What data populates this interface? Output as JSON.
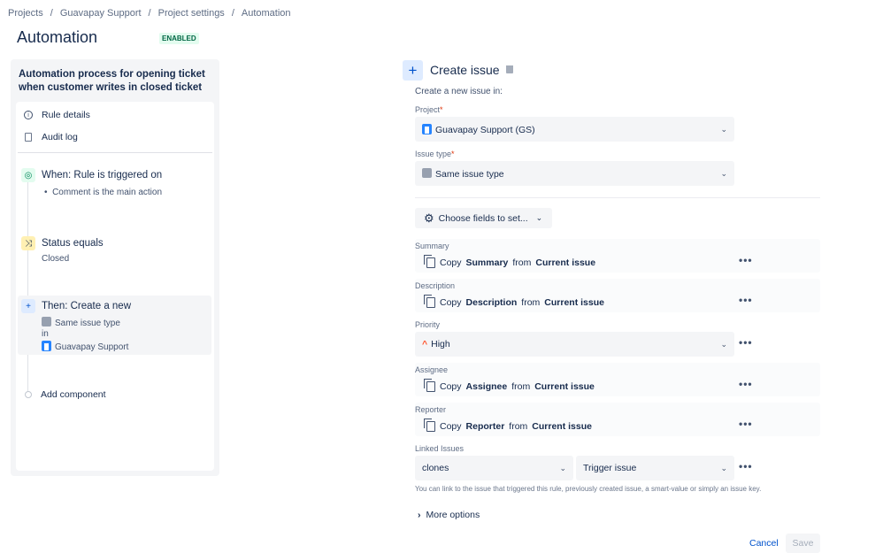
{
  "breadcrumb": [
    "Projects",
    "Guavapay Support",
    "Project settings",
    "Automation"
  ],
  "page_title": "Automation",
  "status_badge": "ENABLED",
  "rule": {
    "title": "Automation process for opening ticket when customer writes in closed ticket",
    "menu": [
      {
        "label": "Rule details",
        "icon": "info-icon"
      },
      {
        "label": "Audit log",
        "icon": "document-icon"
      }
    ],
    "trigger": {
      "label": "When: Rule is triggered on",
      "detail": "Comment is the main action"
    },
    "condition": {
      "label": "Status equals",
      "detail": "Closed"
    },
    "action": {
      "label": "Then: Create a new",
      "issue_type": "Same issue type",
      "in": "in",
      "project": "Guavapay Support"
    },
    "add_component": "Add component"
  },
  "panel": {
    "title": "Create issue",
    "intro": "Create a new issue in:",
    "project_label": "Project",
    "project_value": "Guavapay Support (GS)",
    "issue_type_label": "Issue type",
    "issue_type_value": "Same issue type",
    "choose_fields": "Choose fields to set...",
    "fields": [
      {
        "label": "Summary",
        "prefix": "Copy",
        "field": "Summary",
        "mid": "from",
        "source": "Current issue"
      },
      {
        "label": "Description",
        "prefix": "Copy",
        "field": "Description",
        "mid": "from",
        "source": "Current issue"
      },
      {
        "label": "Assignee",
        "prefix": "Copy",
        "field": "Assignee",
        "mid": "from",
        "source": "Current issue"
      },
      {
        "label": "Reporter",
        "prefix": "Copy",
        "field": "Reporter",
        "mid": "from",
        "source": "Current issue"
      }
    ],
    "priority_label": "Priority",
    "priority_value": "High",
    "priority_color": "#ff5630",
    "linked_label": "Linked Issues",
    "link_type": "clones",
    "link_target": "Trigger issue",
    "linked_help": "You can link to the issue that triggered this rule, previously created issue, a smart-value or simply an issue key.",
    "more_options": "More options",
    "cancel": "Cancel",
    "save": "Save"
  },
  "required_mark": "*"
}
